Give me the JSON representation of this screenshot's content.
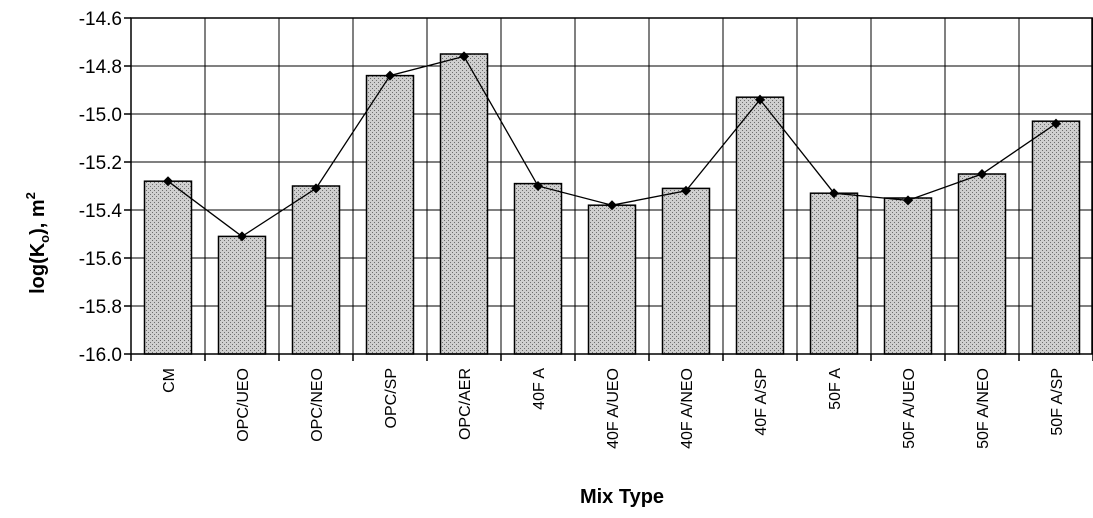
{
  "chart_data": {
    "type": "bar",
    "xlabel": "Mix Type",
    "ylabel_main": "log(K",
    "ylabel_sub": "o",
    "ylabel_tail": "), m",
    "ylabel_sup": "2",
    "ylim": [
      -16.0,
      -14.6
    ],
    "yticks": [
      -16.0,
      -15.8,
      -15.6,
      -15.4,
      -15.2,
      -15.0,
      -14.8,
      -14.6
    ],
    "ytick_labels": [
      "-16.0",
      "-15.8",
      "-15.6",
      "-15.4",
      "-15.2",
      "-15.0",
      "-14.8",
      "-14.6"
    ],
    "categories": [
      "CM",
      "OPC/UEO",
      "OPC/NEO",
      "OPC/SP",
      "OPC/AER",
      "40F A",
      "40F A/UEO",
      "40F A/NEO",
      "40F A/SP",
      "50F A",
      "50F A/UEO",
      "50F A/NEO",
      "50F A/SP"
    ],
    "bar_values": [
      -15.28,
      -15.51,
      -15.3,
      -14.84,
      -14.75,
      -15.29,
      -15.38,
      -15.31,
      -14.93,
      -15.33,
      -15.35,
      -15.25,
      -15.03
    ],
    "line_values": [
      -15.28,
      -15.51,
      -15.31,
      -14.84,
      -14.76,
      -15.3,
      -15.38,
      -15.32,
      -14.94,
      -15.33,
      -15.36,
      -15.25,
      -15.04
    ],
    "grid": true,
    "legend": false,
    "colors": {
      "bar_fill": "#cfcfcf",
      "bar_dots": "#6e6e6e",
      "bar_edge": "#000000",
      "line": "#000000",
      "marker": "#000000",
      "grid": "#000000"
    }
  }
}
